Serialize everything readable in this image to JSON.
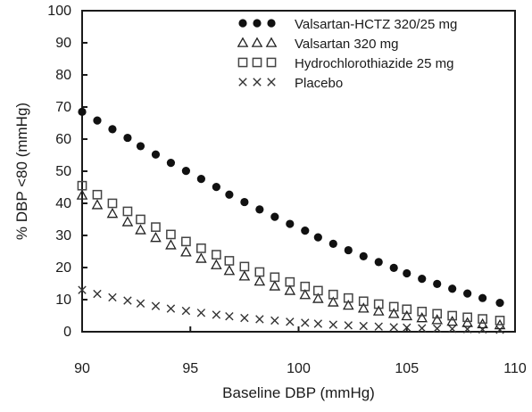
{
  "chart_data": {
    "type": "scatter",
    "xlabel": "Baseline DBP (mmHg)",
    "ylabel": "% DBP <80 (mmHg)",
    "xlim": [
      90,
      110
    ],
    "ylim": [
      0,
      100
    ],
    "xticks": [
      "90",
      "95",
      "100",
      "105",
      "110"
    ],
    "yticks": [
      "0",
      "10",
      "20",
      "30",
      "40",
      "50",
      "60",
      "70",
      "80",
      "90",
      "100"
    ],
    "grid": false,
    "legend_position": "top-right",
    "series": [
      {
        "name": "Valsartan-HCTZ 320/25 mg",
        "marker": "filled-circle",
        "x": [
          90.0,
          90.7,
          91.4,
          92.1,
          92.7,
          93.4,
          94.1,
          94.8,
          95.5,
          96.2,
          96.8,
          97.5,
          98.2,
          98.9,
          99.6,
          100.3,
          100.9,
          101.6,
          102.3,
          103.0,
          103.7,
          104.4,
          105.0,
          105.7,
          106.4,
          107.1,
          107.8,
          108.5,
          109.3
        ],
        "y": [
          68.5,
          65.8,
          63.1,
          60.4,
          57.8,
          55.2,
          52.6,
          50.1,
          47.6,
          45.1,
          42.7,
          40.4,
          38.1,
          35.8,
          33.6,
          31.5,
          29.4,
          27.4,
          25.4,
          23.5,
          21.7,
          19.9,
          18.2,
          16.5,
          14.9,
          13.4,
          11.9,
          10.5,
          9.0
        ]
      },
      {
        "name": "Valsartan 320 mg",
        "marker": "open-triangle",
        "x": [
          90.0,
          90.7,
          91.4,
          92.1,
          92.7,
          93.4,
          94.1,
          94.8,
          95.5,
          96.2,
          96.8,
          97.5,
          98.2,
          98.9,
          99.6,
          100.3,
          100.9,
          101.6,
          102.3,
          103.0,
          103.7,
          104.4,
          105.0,
          105.7,
          106.4,
          107.1,
          107.8,
          108.5,
          109.3
        ],
        "y": [
          42.5,
          39.5,
          36.8,
          34.2,
          31.7,
          29.3,
          27.0,
          24.8,
          22.8,
          20.8,
          19.0,
          17.3,
          15.7,
          14.2,
          12.8,
          11.5,
          10.3,
          9.2,
          8.2,
          7.3,
          6.4,
          5.6,
          4.9,
          4.3,
          3.7,
          3.2,
          2.8,
          2.4,
          2.1
        ]
      },
      {
        "name": "Hydrochlorothiazide 25 mg",
        "marker": "open-square",
        "x": [
          90.0,
          90.7,
          91.4,
          92.1,
          92.7,
          93.4,
          94.1,
          94.8,
          95.5,
          96.2,
          96.8,
          97.5,
          98.2,
          98.9,
          99.6,
          100.3,
          100.9,
          101.6,
          102.3,
          103.0,
          103.7,
          104.4,
          105.0,
          105.7,
          106.4,
          107.1,
          107.8,
          108.5,
          109.3
        ],
        "y": [
          45.5,
          42.7,
          40.0,
          37.5,
          35.0,
          32.6,
          30.3,
          28.1,
          26.0,
          24.0,
          22.1,
          20.3,
          18.6,
          17.0,
          15.5,
          14.1,
          12.8,
          11.6,
          10.5,
          9.5,
          8.6,
          7.8,
          7.0,
          6.3,
          5.6,
          5.0,
          4.5,
          4.0,
          3.5
        ]
      },
      {
        "name": "Placebo",
        "marker": "x",
        "x": [
          90.0,
          90.7,
          91.4,
          92.1,
          92.7,
          93.4,
          94.1,
          94.8,
          95.5,
          96.2,
          96.8,
          97.5,
          98.2,
          98.9,
          99.6,
          100.3,
          100.9,
          101.6,
          102.3,
          103.0,
          103.7,
          104.4,
          105.0,
          105.7,
          106.4,
          107.1,
          107.8,
          108.5,
          109.3
        ],
        "y": [
          13.0,
          11.8,
          10.7,
          9.7,
          8.8,
          8.0,
          7.2,
          6.5,
          5.9,
          5.3,
          4.8,
          4.3,
          3.9,
          3.5,
          3.1,
          2.8,
          2.5,
          2.2,
          2.0,
          1.8,
          1.6,
          1.4,
          1.3,
          1.1,
          1.0,
          0.9,
          0.8,
          0.7,
          0.6
        ]
      }
    ]
  }
}
